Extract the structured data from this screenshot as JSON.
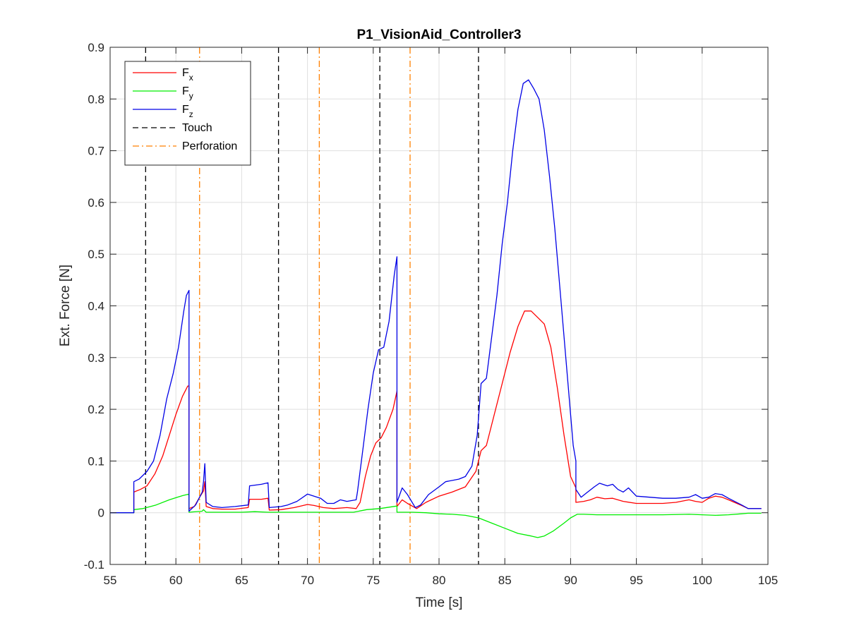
{
  "chart_data": {
    "type": "line",
    "title": "P1_VisionAid_Controller3",
    "xlabel": "Time [s]",
    "ylabel": "Ext. Force [N]",
    "xlim": [
      55,
      105
    ],
    "ylim": [
      -0.1,
      0.9
    ],
    "xticks": [
      55,
      60,
      65,
      70,
      75,
      80,
      85,
      90,
      95,
      100,
      105
    ],
    "yticks": [
      -0.1,
      0,
      0.1,
      0.2,
      0.3,
      0.4,
      0.5,
      0.6,
      0.7,
      0.8,
      0.9
    ],
    "xtick_labels": [
      "55",
      "60",
      "65",
      "70",
      "75",
      "80",
      "85",
      "90",
      "95",
      "100",
      "105"
    ],
    "ytick_labels": [
      "-0.1",
      "0",
      "0.1",
      "0.2",
      "0.3",
      "0.4",
      "0.5",
      "0.6",
      "0.7",
      "0.8",
      "0.9"
    ],
    "grid": true,
    "legend_position": "top-left",
    "series": [
      {
        "name": "Fx",
        "base": "F",
        "sub": "x",
        "color": "#ff0000",
        "style": "solid",
        "points": [
          [
            55,
            0
          ],
          [
            56.8,
            0
          ],
          [
            56.8,
            0.04
          ],
          [
            57.3,
            0.045
          ],
          [
            57.8,
            0.052
          ],
          [
            58.4,
            0.075
          ],
          [
            59,
            0.11
          ],
          [
            59.5,
            0.15
          ],
          [
            60,
            0.19
          ],
          [
            60.5,
            0.225
          ],
          [
            60.9,
            0.245
          ],
          [
            61,
            0.245
          ],
          [
            61,
            0.008
          ],
          [
            61.4,
            0.012
          ],
          [
            61.8,
            0.03
          ],
          [
            62.1,
            0.042
          ],
          [
            62.2,
            0.06
          ],
          [
            62.3,
            0.012
          ],
          [
            62.8,
            0.008
          ],
          [
            63.5,
            0.007
          ],
          [
            64.5,
            0.007
          ],
          [
            65.5,
            0.01
          ],
          [
            65.6,
            0.026
          ],
          [
            66.5,
            0.026
          ],
          [
            67,
            0.028
          ],
          [
            67.1,
            0.005
          ],
          [
            68,
            0.006
          ],
          [
            69,
            0.01
          ],
          [
            70,
            0.016
          ],
          [
            70.5,
            0.014
          ],
          [
            71.2,
            0.01
          ],
          [
            72,
            0.008
          ],
          [
            73,
            0.01
          ],
          [
            73.7,
            0.008
          ],
          [
            74,
            0.02
          ],
          [
            74.4,
            0.07
          ],
          [
            74.8,
            0.11
          ],
          [
            75.2,
            0.135
          ],
          [
            75.6,
            0.145
          ],
          [
            76,
            0.165
          ],
          [
            76.5,
            0.2
          ],
          [
            76.8,
            0.235
          ],
          [
            76.8,
            0.012
          ],
          [
            77.2,
            0.025
          ],
          [
            77.6,
            0.018
          ],
          [
            78.3,
            0.008
          ],
          [
            79,
            0.02
          ],
          [
            80,
            0.032
          ],
          [
            81,
            0.04
          ],
          [
            82,
            0.05
          ],
          [
            82.8,
            0.08
          ],
          [
            83.2,
            0.12
          ],
          [
            83.6,
            0.13
          ],
          [
            84.2,
            0.19
          ],
          [
            84.8,
            0.25
          ],
          [
            85.4,
            0.31
          ],
          [
            86,
            0.36
          ],
          [
            86.5,
            0.39
          ],
          [
            87,
            0.39
          ],
          [
            87.6,
            0.375
          ],
          [
            88,
            0.365
          ],
          [
            88.5,
            0.32
          ],
          [
            89,
            0.24
          ],
          [
            89.5,
            0.15
          ],
          [
            90,
            0.07
          ],
          [
            90.4,
            0.048
          ],
          [
            90.4,
            0.02
          ],
          [
            91,
            0.022
          ],
          [
            91.5,
            0.025
          ],
          [
            92,
            0.03
          ],
          [
            92.6,
            0.027
          ],
          [
            93.2,
            0.028
          ],
          [
            94,
            0.022
          ],
          [
            95,
            0.018
          ],
          [
            96,
            0.018
          ],
          [
            97,
            0.018
          ],
          [
            98,
            0.02
          ],
          [
            99,
            0.025
          ],
          [
            99.5,
            0.022
          ],
          [
            100,
            0.02
          ],
          [
            100.5,
            0.028
          ],
          [
            101,
            0.032
          ],
          [
            101.5,
            0.03
          ],
          [
            102,
            0.025
          ],
          [
            103,
            0.014
          ],
          [
            103.5,
            0.008
          ],
          [
            104,
            0.008
          ],
          [
            104.5,
            0.008
          ]
        ]
      },
      {
        "name": "Fy",
        "base": "F",
        "sub": "y",
        "color": "#00ee00",
        "style": "solid",
        "points": [
          [
            55,
            0
          ],
          [
            56.8,
            0
          ],
          [
            56.8,
            0.006
          ],
          [
            57.5,
            0.008
          ],
          [
            58.5,
            0.015
          ],
          [
            59.5,
            0.025
          ],
          [
            60.5,
            0.033
          ],
          [
            61,
            0.036
          ],
          [
            61,
            0.001
          ],
          [
            62,
            0.003
          ],
          [
            62.1,
            0.006
          ],
          [
            62.3,
            0.001
          ],
          [
            63,
            0.001
          ],
          [
            64,
            0.001
          ],
          [
            65,
            0.001
          ],
          [
            66,
            0.002
          ],
          [
            67,
            0.001
          ],
          [
            68,
            0.001
          ],
          [
            70,
            0.001
          ],
          [
            72,
            0.001
          ],
          [
            73.5,
            0.001
          ],
          [
            74.5,
            0.006
          ],
          [
            75.5,
            0.008
          ],
          [
            76.8,
            0.013
          ],
          [
            76.8,
            0.001
          ],
          [
            78,
            0.001
          ],
          [
            79,
            0
          ],
          [
            80,
            -0.002
          ],
          [
            81,
            -0.003
          ],
          [
            82,
            -0.005
          ],
          [
            83,
            -0.01
          ],
          [
            84,
            -0.02
          ],
          [
            85,
            -0.03
          ],
          [
            86,
            -0.04
          ],
          [
            87,
            -0.045
          ],
          [
            87.5,
            -0.048
          ],
          [
            88,
            -0.045
          ],
          [
            88.7,
            -0.035
          ],
          [
            89.5,
            -0.02
          ],
          [
            90,
            -0.01
          ],
          [
            90.5,
            -0.003
          ],
          [
            91,
            -0.003
          ],
          [
            92,
            -0.004
          ],
          [
            93,
            -0.004
          ],
          [
            95,
            -0.004
          ],
          [
            97,
            -0.004
          ],
          [
            99,
            -0.003
          ],
          [
            100,
            -0.004
          ],
          [
            101,
            -0.005
          ],
          [
            102,
            -0.004
          ],
          [
            103,
            -0.002
          ],
          [
            103.5,
            -0.001
          ],
          [
            104.5,
            -0.001
          ]
        ]
      },
      {
        "name": "Fz",
        "base": "F",
        "sub": "z",
        "color": "#0000e6",
        "style": "solid",
        "points": [
          [
            55,
            0
          ],
          [
            56.8,
            0
          ],
          [
            56.8,
            0.06
          ],
          [
            57.2,
            0.065
          ],
          [
            57.8,
            0.08
          ],
          [
            58.3,
            0.1
          ],
          [
            58.8,
            0.15
          ],
          [
            59.3,
            0.22
          ],
          [
            59.8,
            0.27
          ],
          [
            60.2,
            0.32
          ],
          [
            60.6,
            0.39
          ],
          [
            60.8,
            0.42
          ],
          [
            61,
            0.43
          ],
          [
            61,
            0.003
          ],
          [
            61.5,
            0.015
          ],
          [
            62,
            0.04
          ],
          [
            62.1,
            0.06
          ],
          [
            62.2,
            0.095
          ],
          [
            62.3,
            0.02
          ],
          [
            62.8,
            0.012
          ],
          [
            63.5,
            0.01
          ],
          [
            64.5,
            0.012
          ],
          [
            65.5,
            0.015
          ],
          [
            65.6,
            0.052
          ],
          [
            66.5,
            0.055
          ],
          [
            67,
            0.058
          ],
          [
            67.1,
            0.01
          ],
          [
            68,
            0.012
          ],
          [
            68.5,
            0.015
          ],
          [
            69.2,
            0.022
          ],
          [
            70,
            0.036
          ],
          [
            70.5,
            0.032
          ],
          [
            71,
            0.028
          ],
          [
            71.5,
            0.018
          ],
          [
            72,
            0.018
          ],
          [
            72.5,
            0.025
          ],
          [
            73,
            0.022
          ],
          [
            73.7,
            0.025
          ],
          [
            73.8,
            0.04
          ],
          [
            74.2,
            0.12
          ],
          [
            74.6,
            0.2
          ],
          [
            75,
            0.27
          ],
          [
            75.4,
            0.315
          ],
          [
            75.8,
            0.32
          ],
          [
            76.2,
            0.37
          ],
          [
            76.6,
            0.46
          ],
          [
            76.8,
            0.495
          ],
          [
            76.8,
            0.02
          ],
          [
            77.2,
            0.048
          ],
          [
            77.6,
            0.035
          ],
          [
            78.2,
            0.01
          ],
          [
            78.6,
            0.015
          ],
          [
            79.2,
            0.035
          ],
          [
            80,
            0.05
          ],
          [
            80.5,
            0.06
          ],
          [
            81.5,
            0.065
          ],
          [
            82,
            0.07
          ],
          [
            82.5,
            0.09
          ],
          [
            82.9,
            0.15
          ],
          [
            83.2,
            0.25
          ],
          [
            83.6,
            0.26
          ],
          [
            84,
            0.34
          ],
          [
            84.4,
            0.42
          ],
          [
            84.8,
            0.52
          ],
          [
            85.2,
            0.6
          ],
          [
            85.6,
            0.7
          ],
          [
            86,
            0.78
          ],
          [
            86.4,
            0.83
          ],
          [
            86.8,
            0.837
          ],
          [
            87.2,
            0.82
          ],
          [
            87.6,
            0.8
          ],
          [
            88,
            0.74
          ],
          [
            88.4,
            0.65
          ],
          [
            88.8,
            0.55
          ],
          [
            89.3,
            0.4
          ],
          [
            89.8,
            0.25
          ],
          [
            90.2,
            0.13
          ],
          [
            90.4,
            0.1
          ],
          [
            90.4,
            0.045
          ],
          [
            90.8,
            0.03
          ],
          [
            91.2,
            0.038
          ],
          [
            91.8,
            0.05
          ],
          [
            92.2,
            0.057
          ],
          [
            92.8,
            0.052
          ],
          [
            93.2,
            0.055
          ],
          [
            93.6,
            0.045
          ],
          [
            94,
            0.04
          ],
          [
            94.4,
            0.048
          ],
          [
            95,
            0.032
          ],
          [
            96,
            0.03
          ],
          [
            97,
            0.028
          ],
          [
            98,
            0.028
          ],
          [
            99,
            0.03
          ],
          [
            99.5,
            0.035
          ],
          [
            100,
            0.028
          ],
          [
            100.5,
            0.03
          ],
          [
            101,
            0.037
          ],
          [
            101.5,
            0.035
          ],
          [
            102,
            0.028
          ],
          [
            103,
            0.015
          ],
          [
            103.5,
            0.008
          ],
          [
            104,
            0.008
          ],
          [
            104.5,
            0.008
          ]
        ]
      }
    ],
    "vlines": [
      {
        "name": "Touch",
        "color": "#000000",
        "style": "dashed",
        "x": [
          57.7,
          67.8,
          75.5,
          83
        ]
      },
      {
        "name": "Perforation",
        "color": "#ff8000",
        "style": "dashdot",
        "x": [
          61.8,
          70.9,
          77.8
        ]
      }
    ]
  }
}
